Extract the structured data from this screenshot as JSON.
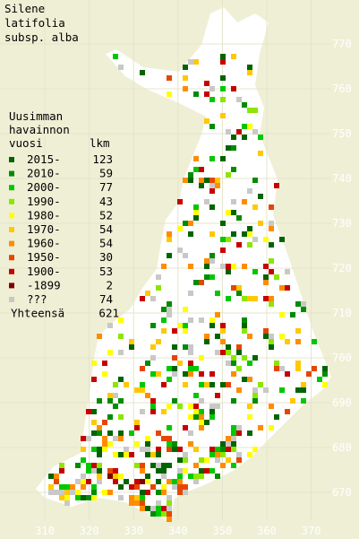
{
  "title": [
    "Silene",
    "latifolia",
    "subsp. alba"
  ],
  "legend": {
    "header": [
      "Uusimman",
      "havainnon",
      "vuosi"
    ],
    "count_header": "lkm",
    "rows": [
      {
        "label": "2015-",
        "count": 123,
        "color": "#006400"
      },
      {
        "label": "2010-",
        "count": 59,
        "color": "#008c00"
      },
      {
        "label": "2000-",
        "count": 77,
        "color": "#00c800"
      },
      {
        "label": "1990-",
        "count": 43,
        "color": "#8ce600"
      },
      {
        "label": "1980-",
        "count": 52,
        "color": "#ffff00"
      },
      {
        "label": "1970-",
        "count": 54,
        "color": "#ffc800"
      },
      {
        "label": "1960-",
        "count": 54,
        "color": "#ff8c00"
      },
      {
        "label": "1950-",
        "count": 30,
        "color": "#e64600"
      },
      {
        "label": "1900-",
        "count": 53,
        "color": "#c80000"
      },
      {
        "label": "-1899",
        "count": 2,
        "color": "#800000"
      },
      {
        "label": "???",
        "count": 74,
        "color": "#c8c8c8"
      }
    ],
    "total": {
      "label": "Yhteensä",
      "count": 621
    }
  },
  "grid": {
    "x_labels": [
      310,
      320,
      330,
      340,
      350,
      360,
      370
    ],
    "y_labels": [
      670,
      680,
      690,
      700,
      710,
      720,
      730,
      740,
      750,
      760,
      770
    ]
  }
}
